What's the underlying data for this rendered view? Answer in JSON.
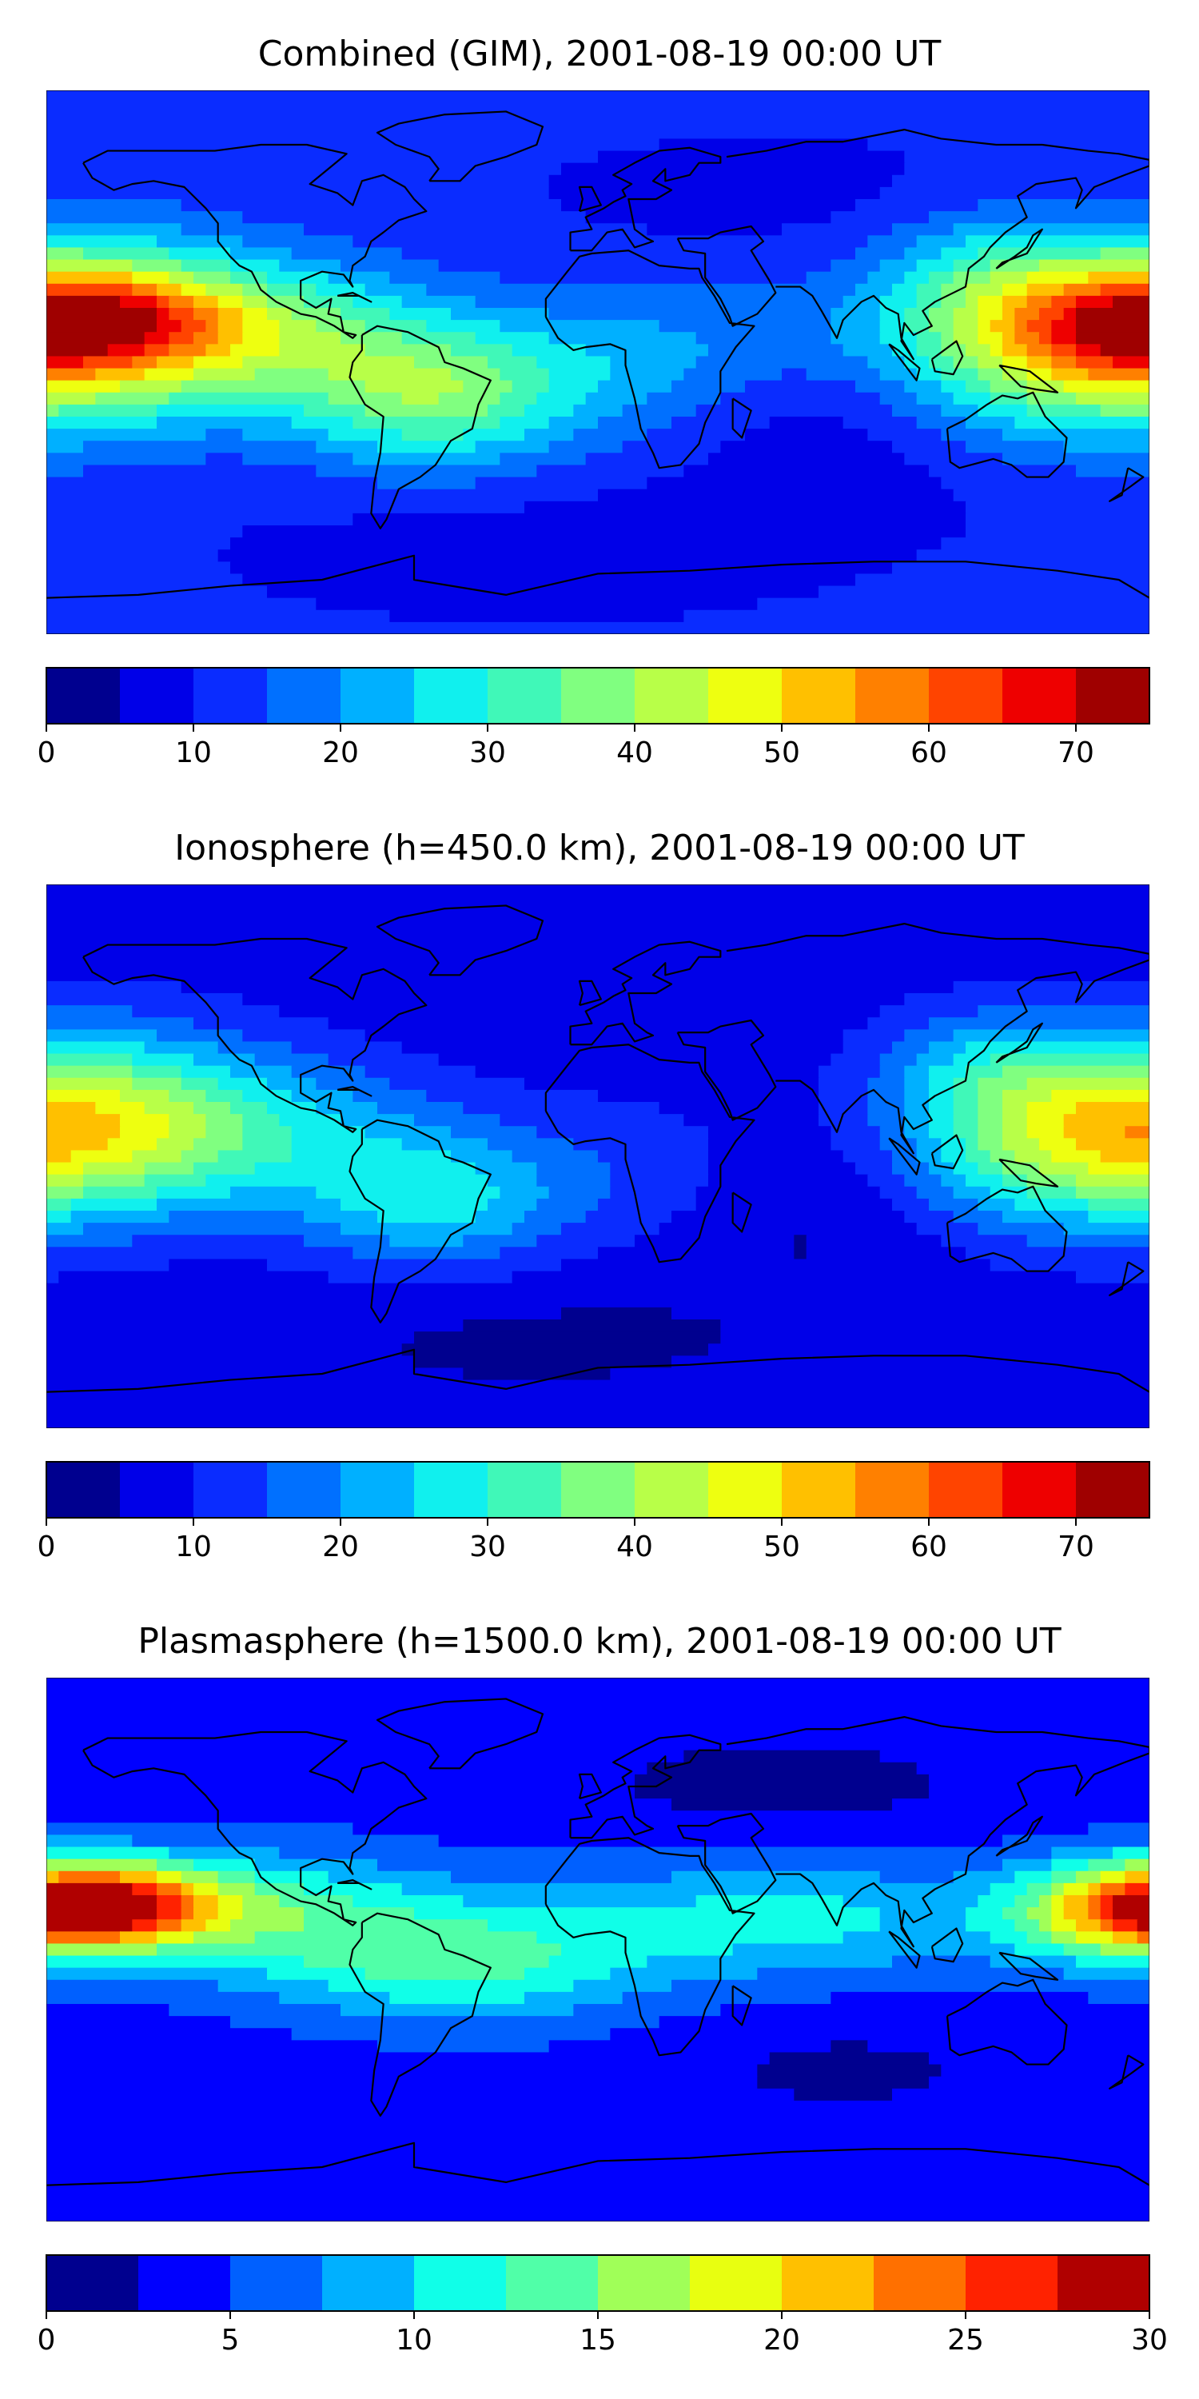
{
  "panels": [
    {
      "title": "Combined (GIM), 2001-08-19 00:00 UT",
      "colorbar": {
        "levels": [
          0,
          5,
          10,
          15,
          20,
          25,
          30,
          35,
          40,
          45,
          50,
          55,
          60,
          65,
          70,
          75
        ],
        "tick_values": [
          0,
          10,
          20,
          30,
          40,
          50,
          60,
          70
        ],
        "tick_labels": [
          "0",
          "10",
          "20",
          "30",
          "40",
          "50",
          "60",
          "70"
        ],
        "colors": [
          "#00008f",
          "#0000e8",
          "#0a2cff",
          "#0070ff",
          "#00b0ff",
          "#10f0ee",
          "#40f8b8",
          "#80ff80",
          "#b8ff48",
          "#eeff10",
          "#ffc000",
          "#ff8000",
          "#ff4400",
          "#ee0000",
          "#9f0000"
        ]
      }
    },
    {
      "title": "Ionosphere  (h=450.0 km), 2001-08-19 00:00 UT",
      "colorbar": {
        "levels": [
          0,
          5,
          10,
          15,
          20,
          25,
          30,
          35,
          40,
          45,
          50,
          55,
          60,
          65,
          70,
          75
        ],
        "tick_values": [
          0,
          10,
          20,
          30,
          40,
          50,
          60,
          70
        ],
        "tick_labels": [
          "0",
          "10",
          "20",
          "30",
          "40",
          "50",
          "60",
          "70"
        ],
        "colors": [
          "#00008f",
          "#0000e8",
          "#0a2cff",
          "#0070ff",
          "#00b0ff",
          "#10f0ee",
          "#40f8b8",
          "#80ff80",
          "#b8ff48",
          "#eeff10",
          "#ffc000",
          "#ff8000",
          "#ff4400",
          "#ee0000",
          "#9f0000"
        ]
      }
    },
    {
      "title": "Plasmasphere (h=1500.0 km), 2001-08-19 00:00 UT",
      "colorbar": {
        "levels": [
          0,
          2.5,
          5,
          7.5,
          10,
          12.5,
          15,
          17.5,
          20,
          22.5,
          25,
          27.5,
          30
        ],
        "tick_values": [
          0,
          5,
          10,
          15,
          20,
          25,
          30
        ],
        "tick_labels": [
          "0",
          "5",
          "10",
          "15",
          "20",
          "25",
          "30"
        ],
        "colors": [
          "#00008f",
          "#0000ff",
          "#0060ff",
          "#00b0ff",
          "#10ffe8",
          "#50ffa8",
          "#a0ff58",
          "#e8ff10",
          "#ffc000",
          "#ff7000",
          "#ff2200",
          "#b00000"
        ]
      }
    }
  ]
}
